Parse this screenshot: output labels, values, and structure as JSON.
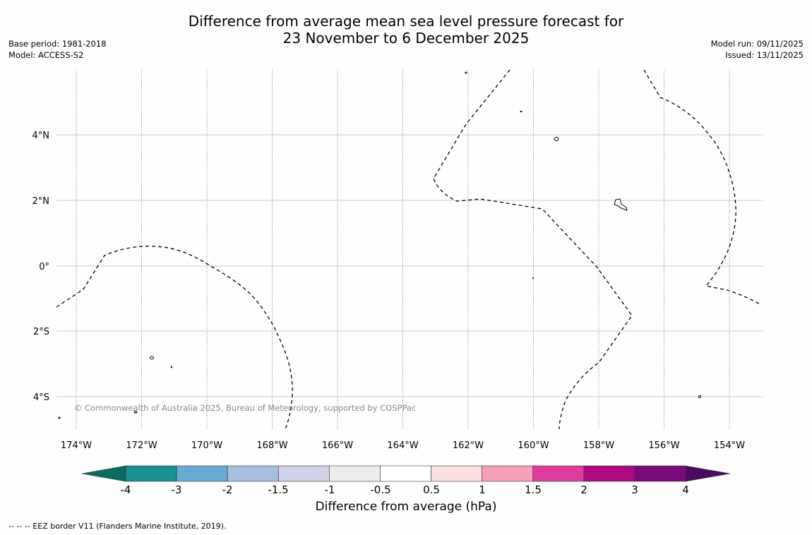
{
  "title": {
    "line1": "Difference from average mean sea level pressure forecast for",
    "line2": "23 November to 6 December 2025"
  },
  "meta_left": {
    "base_period": "Base period: 1981-2018",
    "model": "Model: ACCESS-S2"
  },
  "meta_right": {
    "model_run": "Model run: 09/11/2025",
    "issued": "Issued: 13/11/2025"
  },
  "map": {
    "lon_labels": [
      "174°W",
      "172°W",
      "170°W",
      "168°W",
      "166°W",
      "164°W",
      "162°W",
      "160°W",
      "158°W",
      "156°W",
      "154°W"
    ],
    "lat_labels": [
      "4°N",
      "2°N",
      "0°",
      "2°S",
      "4°S"
    ],
    "credit": "© Commonwealth of Australia 2025, Bureau of Meteorology, supported by COSPPac"
  },
  "colorbar": {
    "title": "Difference from average (hPa)",
    "tick_labels": [
      "-4",
      "-3",
      "-2",
      "-1.5",
      "-1",
      "-0.5",
      "0.5",
      "1",
      "1.5",
      "2",
      "3",
      "4"
    ],
    "low_extend_color": "#0b6b5e",
    "high_extend_color": "#4a0a60",
    "colors": [
      "#1a9090",
      "#68aad2",
      "#a8bedf",
      "#d2d2e8",
      "#ececec",
      "#ffffff",
      "#fde0e0",
      "#f4a0b8",
      "#de3c9c",
      "#ad0a80",
      "#7a0a7a"
    ]
  },
  "footnote": "--  --  -- EEZ border V11 (Flanders Marine Institute, 2019)."
}
